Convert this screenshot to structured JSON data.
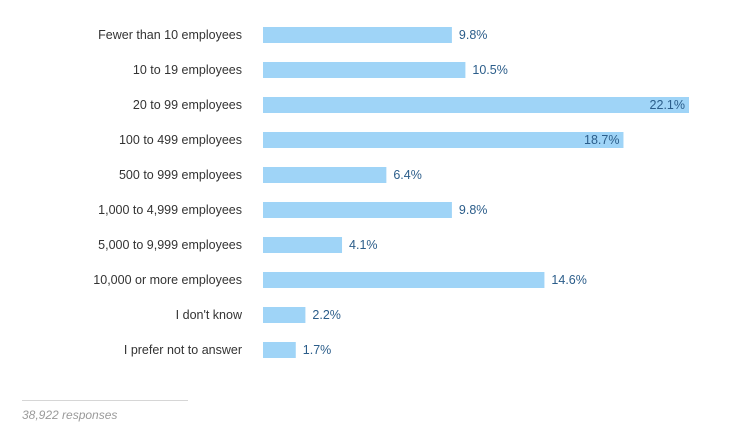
{
  "chart_data": {
    "type": "bar",
    "orientation": "horizontal",
    "categories": [
      "Fewer than 10 employees",
      "10 to 19 employees",
      "20 to 99 employees",
      "100 to 499 employees",
      "500 to 999 employees",
      "1,000 to 4,999 employees",
      "5,000 to 9,999 employees",
      "10,000 or more employees",
      "I don't know",
      "I prefer not to answer"
    ],
    "values": [
      9.8,
      10.5,
      22.1,
      18.7,
      6.4,
      9.8,
      4.1,
      14.6,
      2.2,
      1.7
    ],
    "value_labels": [
      "9.8%",
      "10.5%",
      "22.1%",
      "18.7%",
      "6.4%",
      "9.8%",
      "4.1%",
      "14.6%",
      "2.2%",
      "1.7%"
    ],
    "unit": "%",
    "xlim": [
      0,
      22.1
    ],
    "grid": false,
    "bar_color": "#9fd4f7",
    "label_color": "#2b5d8a"
  },
  "footer": {
    "responses": "38,922 responses"
  }
}
